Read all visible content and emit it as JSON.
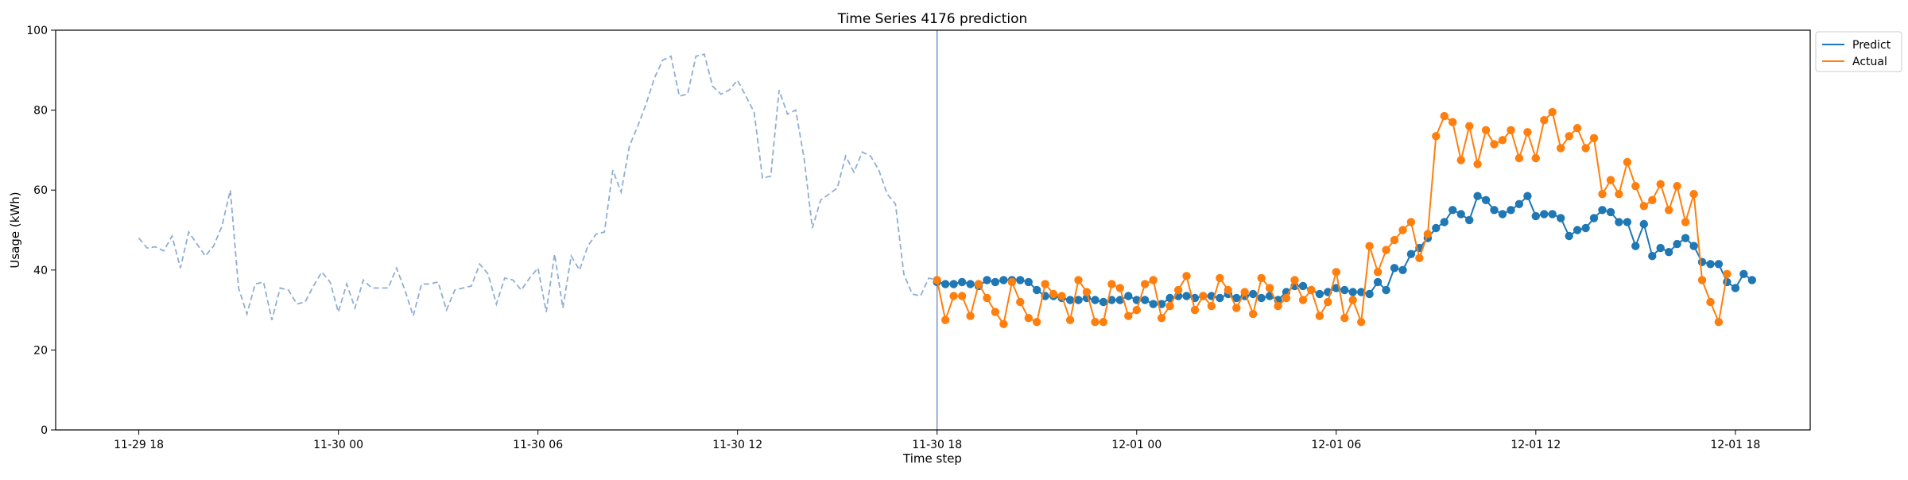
{
  "chart_data": {
    "type": "line",
    "title": "Time Series 4176 prediction",
    "xlabel": "Time step",
    "ylabel": "Usage (kWh)",
    "ylim": [
      0,
      100
    ],
    "yticks": [
      0,
      20,
      40,
      60,
      80,
      100
    ],
    "xrange": [
      "2023-11-29T15:30",
      "2023-12-01T20:15"
    ],
    "xticks": [
      {
        "x": "2023-11-29T18:00",
        "label": "11-29 18"
      },
      {
        "x": "2023-11-30T00:00",
        "label": "11-30 00"
      },
      {
        "x": "2023-11-30T06:00",
        "label": "11-30 06"
      },
      {
        "x": "2023-11-30T12:00",
        "label": "11-30 12"
      },
      {
        "x": "2023-11-30T18:00",
        "label": "11-30 18"
      },
      {
        "x": "2023-12-01T00:00",
        "label": "12-01 00"
      },
      {
        "x": "2023-12-01T06:00",
        "label": "12-01 06"
      },
      {
        "x": "2023-12-01T12:00",
        "label": "12-01 12"
      },
      {
        "x": "2023-12-01T18:00",
        "label": "12-01 18"
      }
    ],
    "grid": false,
    "legend_position": "top-right",
    "forecast_start": "2023-11-30T18:00",
    "history": {
      "start": "2023-11-29T18:00",
      "step_minutes": 15,
      "color": "#8faed3",
      "values": [
        48,
        45.5,
        45.8,
        44.8,
        48.5,
        40.5,
        49.5,
        46.5,
        43.5,
        46,
        51,
        60,
        35.5,
        29,
        36.5,
        37,
        27.5,
        35.5,
        35,
        31.5,
        32,
        36,
        39.5,
        37,
        29.5,
        36.5,
        30.5,
        37.5,
        35.5,
        35.5,
        35.5,
        40.5,
        35,
        28.5,
        36.5,
        36.5,
        37,
        30,
        35,
        35.5,
        36,
        41.5,
        39,
        31.5,
        38,
        37.5,
        35,
        38,
        40.5,
        29.5,
        44,
        30.5,
        43.5,
        40,
        46,
        49,
        49.5,
        65,
        59.5,
        71,
        76,
        81.5,
        88,
        92.5,
        93.5,
        83.5,
        84,
        93.5,
        94,
        86,
        84,
        85,
        87.5,
        83.5,
        79.5,
        63,
        63.5,
        85,
        79,
        80,
        68,
        50.5,
        57.5,
        59,
        60.5,
        68.5,
        64.5,
        69.5,
        68.5,
        65,
        59,
        56.5,
        39,
        34,
        33.5,
        38,
        37.5
      ]
    },
    "series": [
      {
        "name": "Predict",
        "color": "#1f77b4",
        "start": "2023-11-30T18:00",
        "step_minutes": 15,
        "values": [
          37,
          36.5,
          36.5,
          37,
          36.5,
          36,
          37.5,
          37,
          37.5,
          37.5,
          37.5,
          37,
          35,
          33.5,
          33.5,
          33,
          32.5,
          32.5,
          33,
          32.5,
          32,
          32.5,
          32.5,
          33.5,
          32.5,
          32.5,
          31.5,
          31.5,
          33,
          33.5,
          33.5,
          33,
          33.5,
          33.5,
          33,
          34,
          33,
          33.5,
          34,
          33,
          33.5,
          32.5,
          34.5,
          36,
          36,
          35,
          34,
          34.5,
          35.5,
          35,
          34.5,
          34.5,
          34,
          37,
          35,
          40.5,
          40,
          44,
          45.5,
          48,
          50.5,
          52,
          55,
          54,
          52.5,
          58.5,
          57.5,
          55,
          54,
          55,
          56.5,
          58.5,
          53.5,
          54,
          54,
          53,
          48.5,
          50,
          50.5,
          53,
          55,
          54.5,
          52,
          52,
          46,
          51.5,
          43.5,
          45.5,
          44.5,
          46.5,
          48,
          46,
          42,
          41.5,
          41.5,
          37,
          35.5,
          39,
          37.5
        ]
      },
      {
        "name": "Actual",
        "color": "#ff7f0e",
        "start": "2023-11-30T18:00",
        "step_minutes": 15,
        "values": [
          37.5,
          27.5,
          33.5,
          33.5,
          28.5,
          36.5,
          33,
          29.5,
          26.5,
          37,
          32,
          28,
          27,
          36.5,
          34,
          33.5,
          27.5,
          37.5,
          34.5,
          27,
          27,
          36.5,
          35.5,
          28.5,
          30,
          36.5,
          37.5,
          28,
          31,
          35,
          38.5,
          30,
          33.5,
          31,
          38,
          35,
          30.5,
          34.5,
          29,
          38,
          35.5,
          31,
          33,
          37.5,
          32.5,
          35,
          28.5,
          32,
          39.5,
          28,
          32.5,
          27,
          46,
          39.5,
          45,
          47.5,
          50,
          52,
          43,
          49,
          73.5,
          78.5,
          77,
          67.5,
          76,
          66.5,
          75,
          71.5,
          72.5,
          75,
          68,
          74.5,
          68,
          77.5,
          79.5,
          70.5,
          73.5,
          75.5,
          70.5,
          73,
          59,
          62.5,
          59,
          67,
          61,
          56,
          57.5,
          61.5,
          55,
          61,
          52,
          59,
          37.5,
          32,
          27,
          39
        ]
      }
    ]
  }
}
